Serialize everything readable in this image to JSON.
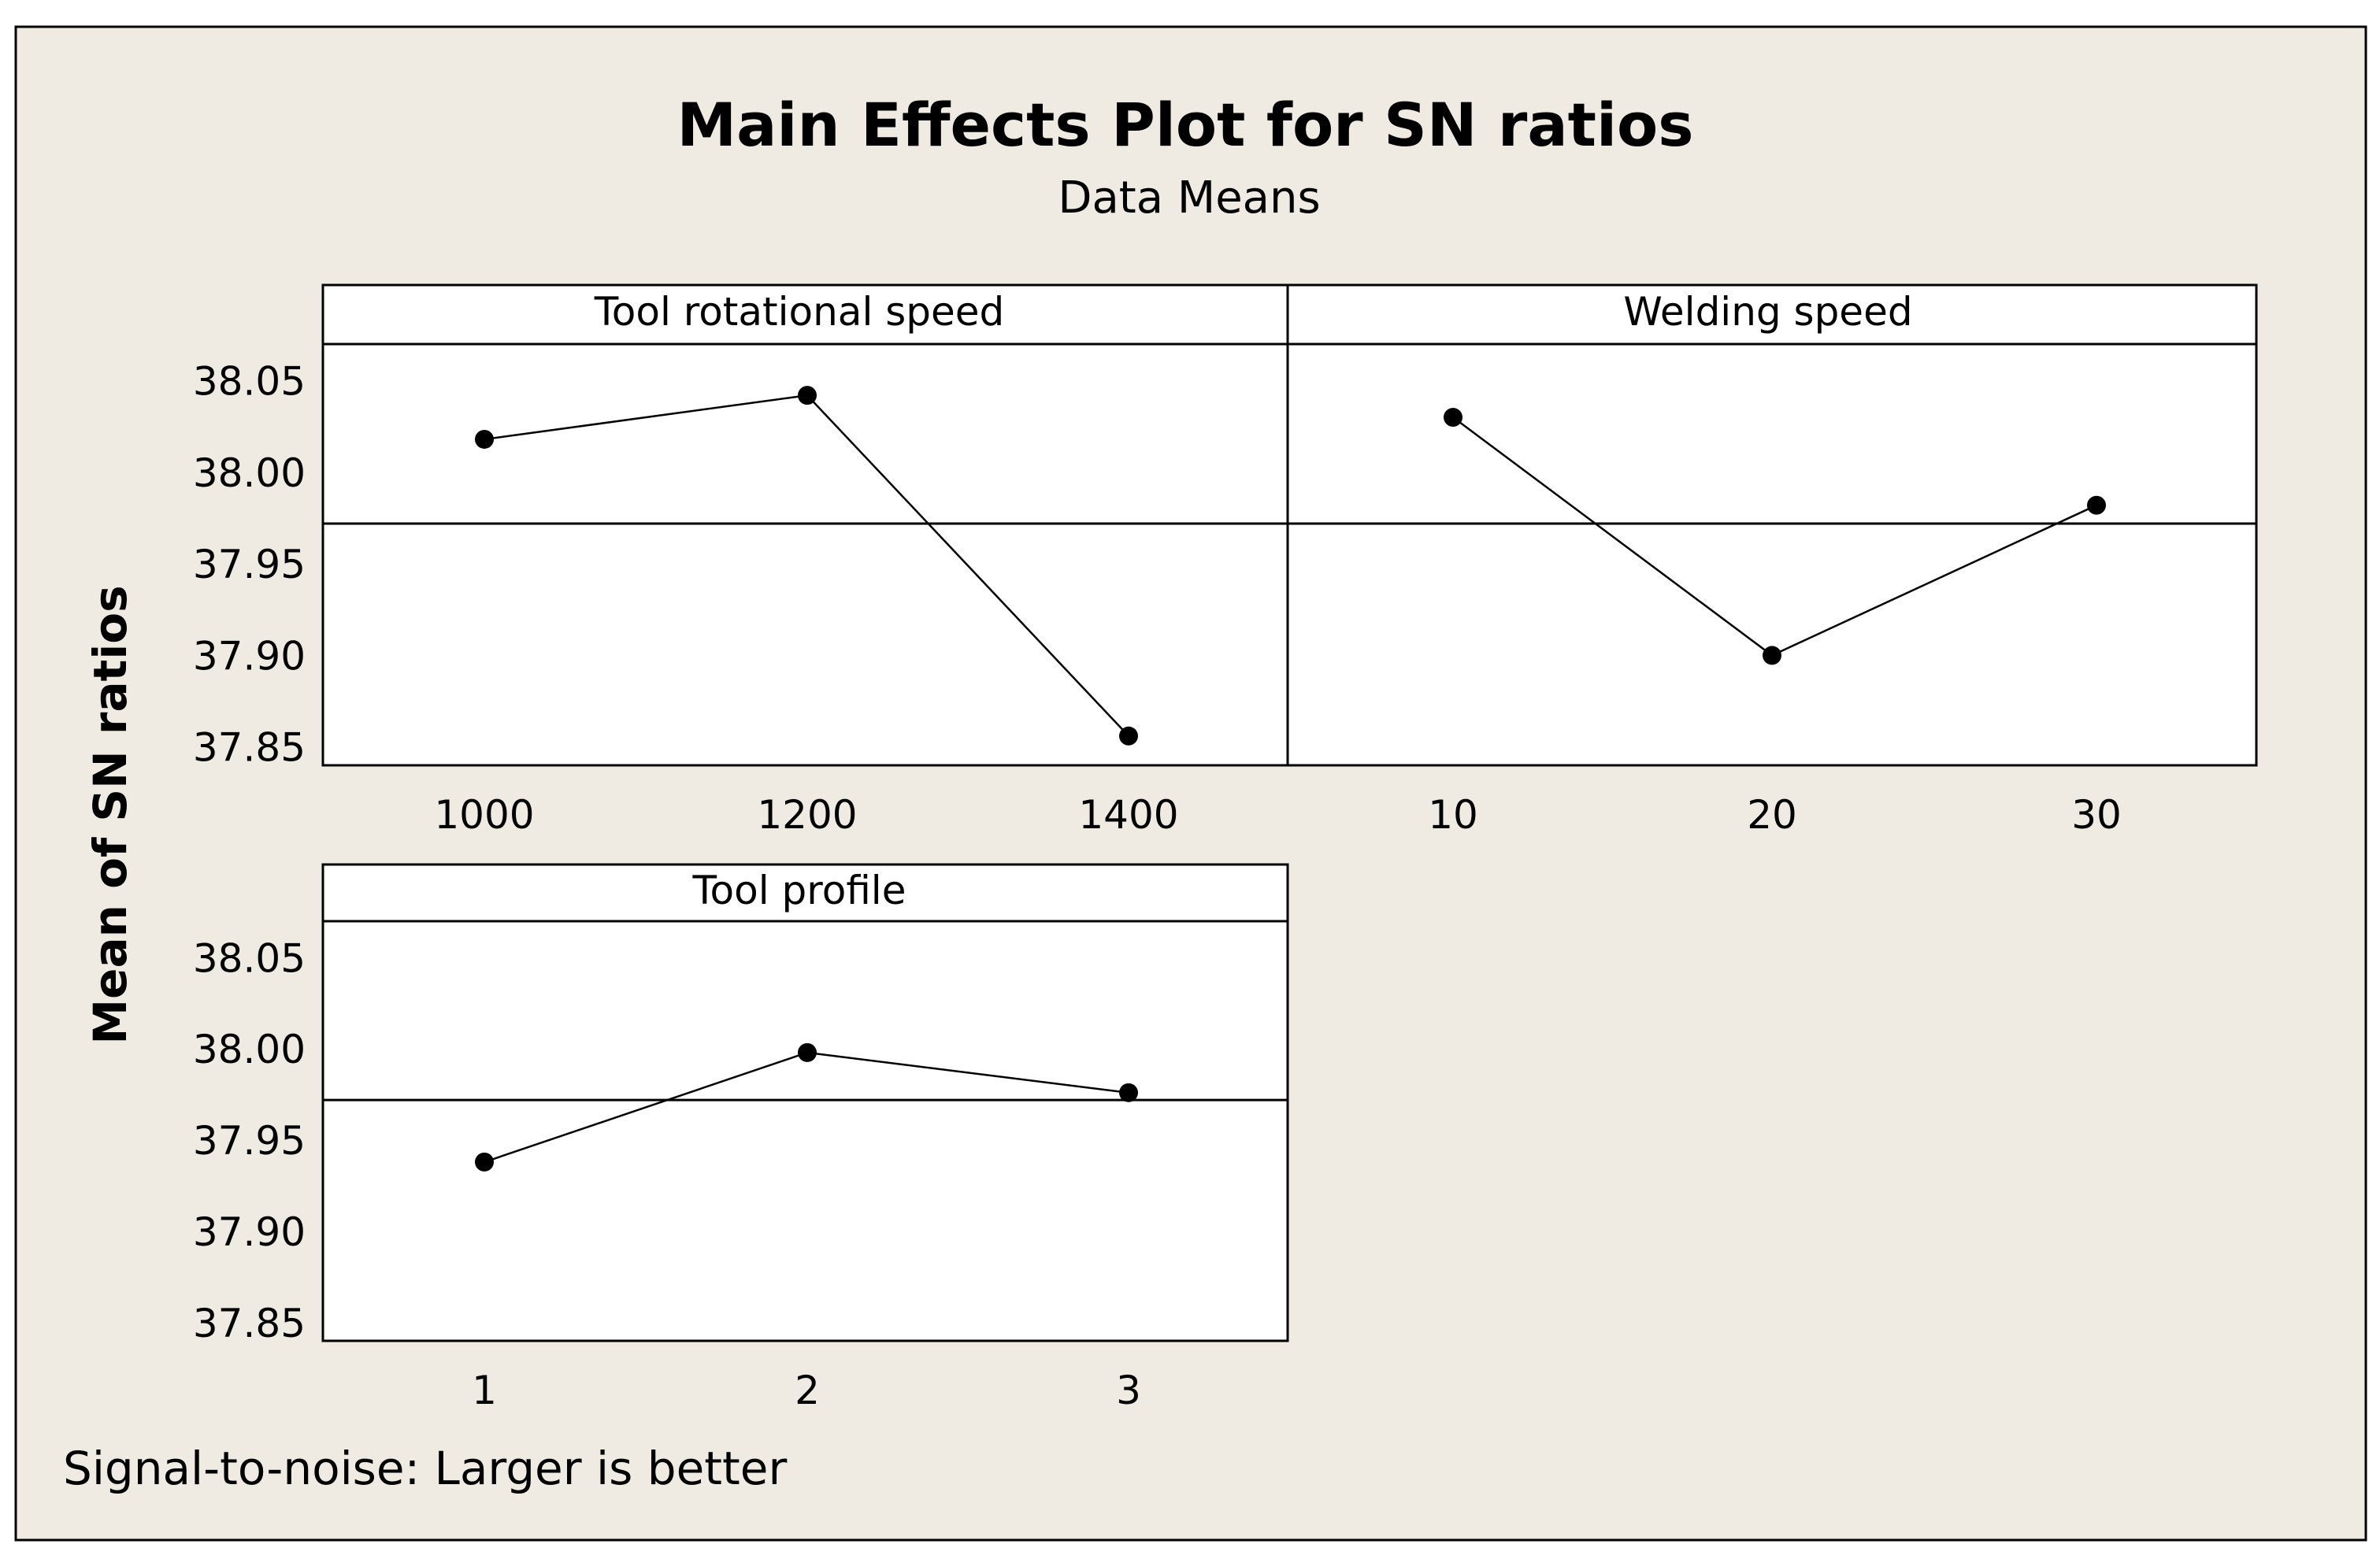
{
  "chart_data": {
    "type": "line",
    "title": "Main Effects Plot for SN ratios",
    "subtitle": "Data Means",
    "ylabel": "Mean of SN ratios",
    "footnote": "Signal-to-noise: Larger is better",
    "ylim": [
      37.84,
      38.07
    ],
    "yticks": [
      "37.85",
      "37.90",
      "37.95",
      "38.00",
      "38.05"
    ],
    "grand_mean": 37.972,
    "colors": {
      "background": "#efebe2",
      "panel": "#ffffff",
      "ink": "#000000"
    },
    "panels": [
      {
        "name": "Tool rotational speed",
        "categories": [
          "1000",
          "1200",
          "1400"
        ],
        "values": [
          38.018,
          38.042,
          37.856
        ]
      },
      {
        "name": "Welding speed",
        "categories": [
          "10",
          "20",
          "30"
        ],
        "values": [
          38.03,
          37.9,
          37.982
        ]
      },
      {
        "name": "Tool profile",
        "categories": [
          "1",
          "2",
          "3"
        ],
        "values": [
          37.938,
          37.998,
          37.976
        ]
      }
    ]
  }
}
